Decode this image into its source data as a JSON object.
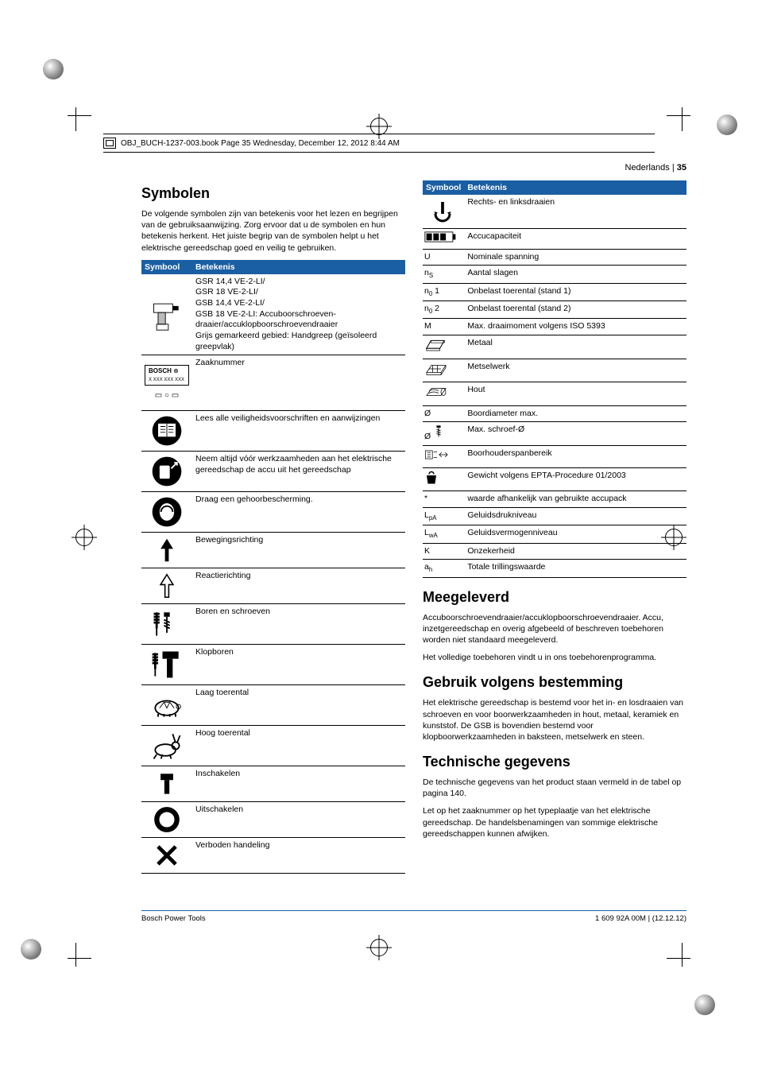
{
  "meta": {
    "book_header": "OBJ_BUCH-1237-003.book  Page 35  Wednesday, December 12, 2012  8:44 AM",
    "page_lang": "Nederlands",
    "page_sep": " | ",
    "page_num": "35",
    "footer_left": "Bosch Power Tools",
    "footer_right": "1 609 92A 00M | (12.12.12)"
  },
  "styles": {
    "th_bg": "#1a5ea3",
    "th_color": "#ffffff",
    "body_font_size": 10.5,
    "heading_font_size": 18
  },
  "left": {
    "heading": "Symbolen",
    "intro": "De volgende symbolen zijn van betekenis voor het lezen en begrijpen van de gebruiksaanwijzing. Zorg ervoor dat u de symbolen en hun betekenis herkent. Het juiste begrip van de symbolen helpt u het elektrische gereedschap goed en veilig te gebruiken.",
    "th_symbol": "Symbool",
    "th_meaning": "Betekenis",
    "rows": [
      {
        "icon": "drill-tool",
        "text": "GSR 14,4 VE-2-LI/\nGSR 18 VE-2-LI/\nGSB 14,4 VE-2-LI/\nGSB 18 VE-2-LI: Accuboorschroeven­draaier/accuklopboorschroevendraaier\nGrijs gemarkeerd gebied: Handgreep (geïsoleerd greepvlak)"
      },
      {
        "icon": "bosch-plate",
        "text": "Zaaknummer"
      },
      {
        "icon": "read-manual",
        "text": "Lees alle veiligheidsvoorschriften en aanwijzingen"
      },
      {
        "icon": "remove-battery",
        "text": "Neem altijd vóór werkzaamheden aan het elektrische gereedschap de accu uit het gereedschap"
      },
      {
        "icon": "ear-protection",
        "text": "Draag een gehoorbescherming."
      },
      {
        "icon": "arrow-up",
        "text": "Bewegingsrichting"
      },
      {
        "icon": "arrow-outline",
        "text": "Reactierichting"
      },
      {
        "icon": "drill-screw",
        "text": "Boren en schroeven"
      },
      {
        "icon": "hammer-drill",
        "text": "Klopboren"
      },
      {
        "icon": "turtle",
        "text": "Laag toerental"
      },
      {
        "icon": "rabbit",
        "text": "Hoog toerental"
      },
      {
        "icon": "switch-on",
        "text": "Inschakelen"
      },
      {
        "icon": "switch-off",
        "text": "Uitschakelen"
      },
      {
        "icon": "cross",
        "text": "Verboden handeling"
      }
    ]
  },
  "right": {
    "th_symbol": "Symbool",
    "th_meaning": "Betekenis",
    "rows": [
      {
        "icon": "rotation",
        "text": "Rechts- en linksdraaien"
      },
      {
        "icon": "battery",
        "text": "Accucapaciteit"
      },
      {
        "sym": "U",
        "text": "Nominale spanning"
      },
      {
        "sym_html": "n<sub>S</sub>",
        "text": "Aantal slagen"
      },
      {
        "sym_html": "n<sub>0</sub> 1",
        "text": "Onbelast toerental (stand 1)"
      },
      {
        "sym_html": "n<sub>0</sub> 2",
        "text": "Onbelast toerental (stand 2)"
      },
      {
        "sym": "M",
        "text": "Max. draaimoment volgens ISO 5393"
      },
      {
        "icon": "metal",
        "text": "Metaal"
      },
      {
        "icon": "brick",
        "text": "Metselwerk"
      },
      {
        "icon": "wood",
        "text": "Hout"
      },
      {
        "sym": "Ø",
        "text": "Boordiameter max."
      },
      {
        "icon": "screw-dia",
        "sym_prefix": "Ø",
        "text": "Max. schroef-Ø"
      },
      {
        "icon": "chuck",
        "text": "Boorhouderspanbereik"
      },
      {
        "icon": "weight",
        "text": "Gewicht volgens EPTA-Procedure 01/2003"
      },
      {
        "sym": "*",
        "text": "waarde afhankelijk van gebruikte accu­pack"
      },
      {
        "sym_html": "L<sub>pA</sub>",
        "text": "Geluidsdrukniveau"
      },
      {
        "sym_html": "L<sub>wA</sub>",
        "text": "Geluidsvermogenniveau"
      },
      {
        "sym": "K",
        "text": "Onzekerheid"
      },
      {
        "sym_html": "a<sub>h</sub>",
        "text": "Totale trillingswaarde"
      }
    ],
    "sections": [
      {
        "heading": "Meegeleverd",
        "paras": [
          "Accuboorschroevendraaier/accuklopboorschroevendraaier. Accu, inzetgereedschap en overig afgebeeld of beschreven toebehoren worden niet standaard meegeleverd.",
          "Het volledige toebehoren vindt u in ons toebehorenprogram­ma."
        ]
      },
      {
        "heading": "Gebruik volgens bestemming",
        "paras": [
          "Het elektrische gereedschap is bestemd voor het in- en los­draaien van schroeven en voor boorwerkzaamheden in hout, metaal, keramiek en kunststof. De GSB is bovendien bestemd voor klopboorwerkzaamheden in baksteen, metselwerk en steen."
        ]
      },
      {
        "heading": "Technische gegevens",
        "paras": [
          "De technische gegevens van het product staan vermeld in de tabel op pagina 140.",
          "Let op het zaaknummer op het typeplaatje van het elektrische gereedschap. De handelsbenamingen van sommige elektri­sche gereedschappen kunnen afwijken."
        ]
      }
    ]
  }
}
